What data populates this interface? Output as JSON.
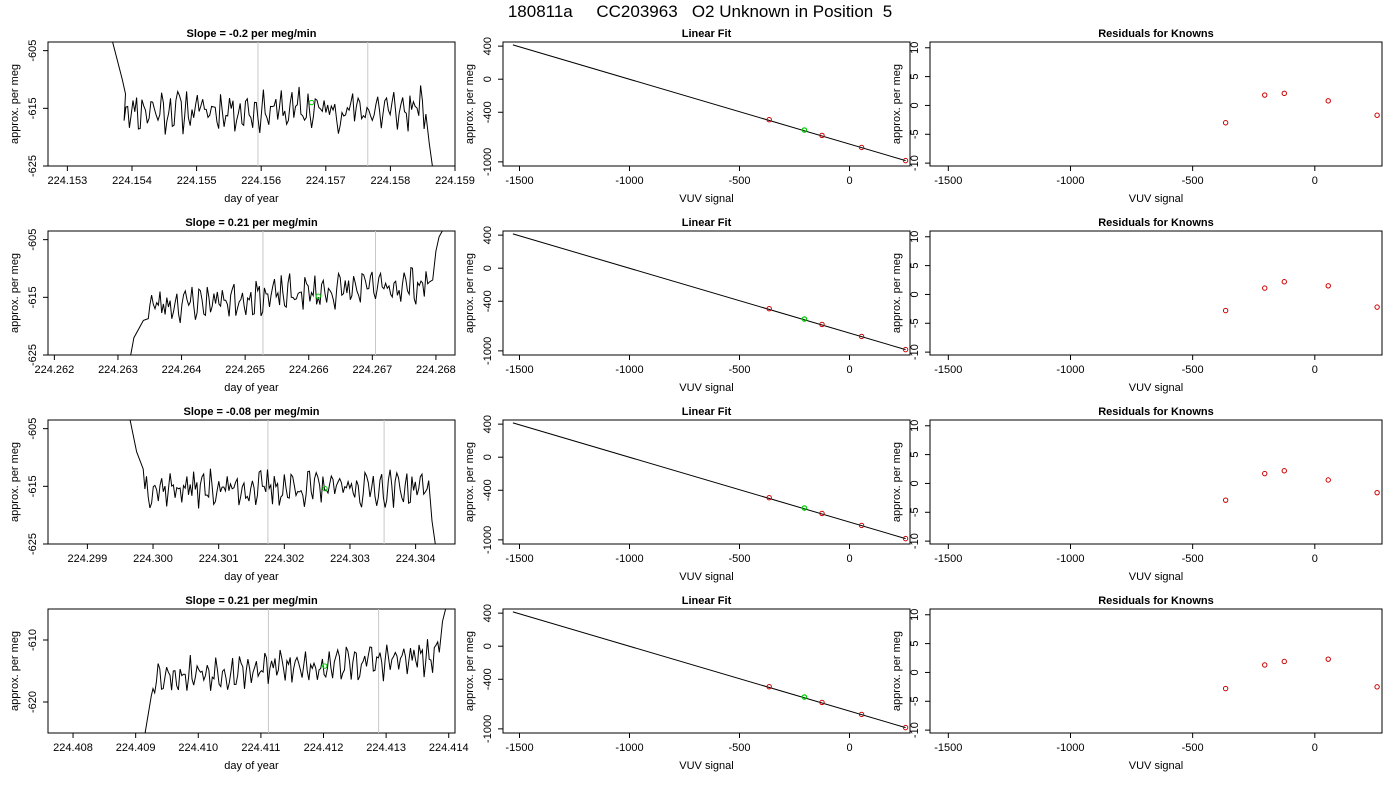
{
  "figure": {
    "title": "180811a     CC203963   O2 Unknown in Position  5"
  },
  "colors": {
    "line": "#000000",
    "marker_known": "#cc0000",
    "marker_unknown": "#00cc00",
    "vline": "#c8c8c8"
  },
  "chart_data": [
    {
      "id": "r1-time",
      "type": "line",
      "title": "Slope =  -0.2  per meg/min",
      "xlabel": "day of year",
      "ylabel": "approx. per meg",
      "xlim": [
        224.1527,
        224.159
      ],
      "ylim": [
        -625,
        -603.5
      ],
      "xticks": [
        224.153,
        224.154,
        224.155,
        224.156,
        224.157,
        224.158,
        224.159
      ],
      "xtick_labels": [
        "224.153",
        "224.154",
        "224.155",
        "224.156",
        "224.157",
        "224.158",
        "224.159"
      ],
      "yticks": [
        -605,
        -615,
        -625
      ],
      "ytick_labels": [
        "-605",
        "-615",
        "-625"
      ],
      "trace_start": 224.15385,
      "trace_end": 224.15855,
      "trace_mean": -615.3,
      "trace_amp": 3.2,
      "seed": 11,
      "head": [
        [
          224.1537,
          -603.5
        ],
        [
          224.15385,
          -610
        ],
        [
          224.1539,
          -612.5
        ]
      ],
      "tail": [
        [
          224.15855,
          -616
        ],
        [
          224.1586,
          -621
        ],
        [
          224.15865,
          -625
        ]
      ],
      "vlines": [
        224.15595,
        224.15765
      ],
      "marker": {
        "x": 224.15678,
        "y": -614.0
      }
    },
    {
      "id": "r1-fit",
      "type": "scatter",
      "title": "Linear Fit",
      "xlabel": "VUV signal",
      "ylabel": "approx. per meg",
      "xlim": [
        -1575,
        275
      ],
      "ylim": [
        -1050,
        450
      ],
      "xticks": [
        -1500,
        -1000,
        -500,
        0
      ],
      "xtick_labels": [
        "-1500",
        "-1000",
        "-500",
        "0"
      ],
      "yticks": [
        400,
        0,
        -400,
        -1000
      ],
      "ytick_labels": [
        "400",
        "0",
        "-400",
        "-1000"
      ],
      "line": [
        [
          -1530,
          415
        ],
        [
          255,
          -985
        ]
      ],
      "known": [
        [
          -365,
          -490
        ],
        [
          -125,
          -680
        ],
        [
          55,
          -825
        ],
        [
          255,
          -985
        ]
      ],
      "unknown": [
        [
          -205,
          -615
        ]
      ]
    },
    {
      "id": "r1-resid",
      "type": "scatter",
      "title": "Residuals for Knowns",
      "xlabel": "VUV signal",
      "ylabel": "approx. per meg",
      "xlim": [
        -1575,
        275
      ],
      "ylim": [
        -10.5,
        11
      ],
      "xticks": [
        -1500,
        -1000,
        -500,
        0
      ],
      "xtick_labels": [
        "-1500",
        "-1000",
        "-500",
        "0"
      ],
      "yticks": [
        10,
        5,
        0,
        -5,
        -10
      ],
      "ytick_labels": [
        "10",
        "5",
        "0",
        "-5",
        "-10"
      ],
      "known": [
        [
          -365,
          -3.0
        ],
        [
          -205,
          1.8
        ],
        [
          -125,
          2.1
        ],
        [
          55,
          0.8
        ],
        [
          255,
          -1.7
        ]
      ]
    },
    {
      "id": "r2-time",
      "type": "line",
      "title": "Slope =  0.21  per meg/min",
      "xlabel": "day of year",
      "ylabel": "approx. per meg",
      "xlim": [
        224.2619,
        224.2683
      ],
      "ylim": [
        -625,
        -603.5
      ],
      "xticks": [
        224.262,
        224.263,
        224.264,
        224.265,
        224.266,
        224.267,
        224.268
      ],
      "xtick_labels": [
        "224.262",
        "224.263",
        "224.264",
        "224.265",
        "224.266",
        "224.267",
        "224.268"
      ],
      "yticks": [
        -605,
        -615,
        -625
      ],
      "ytick_labels": [
        "-605",
        "-615",
        "-625"
      ],
      "trace_start": 224.26345,
      "trace_end": 224.26795,
      "trace_mean": -614.5,
      "trace_amp": 2.6,
      "seed": 23,
      "slope": 4.0,
      "head": [
        [
          224.2632,
          -625
        ],
        [
          224.26325,
          -622
        ],
        [
          224.2634,
          -619
        ]
      ],
      "tail": [
        [
          224.26795,
          -612
        ],
        [
          224.268,
          -607
        ],
        [
          224.26805,
          -604.5
        ],
        [
          224.2681,
          -603.5
        ]
      ],
      "vlines": [
        224.26528,
        224.26705
      ],
      "marker": {
        "x": 224.26615,
        "y": -614.8
      }
    },
    {
      "id": "r2-fit",
      "type": "scatter",
      "title": "Linear Fit",
      "xlabel": "VUV signal",
      "ylabel": "approx. per meg",
      "xlim": [
        -1575,
        275
      ],
      "ylim": [
        -1050,
        450
      ],
      "xticks": [
        -1500,
        -1000,
        -500,
        0
      ],
      "xtick_labels": [
        "-1500",
        "-1000",
        "-500",
        "0"
      ],
      "yticks": [
        400,
        0,
        -400,
        -1000
      ],
      "ytick_labels": [
        "400",
        "0",
        "-400",
        "-1000"
      ],
      "line": [
        [
          -1530,
          415
        ],
        [
          255,
          -985
        ]
      ],
      "known": [
        [
          -365,
          -490
        ],
        [
          -125,
          -680
        ],
        [
          55,
          -825
        ],
        [
          255,
          -985
        ]
      ],
      "unknown": [
        [
          -205,
          -615
        ]
      ]
    },
    {
      "id": "r2-resid",
      "type": "scatter",
      "title": "Residuals for Knowns",
      "xlabel": "VUV signal",
      "ylabel": "approx. per meg",
      "xlim": [
        -1575,
        275
      ],
      "ylim": [
        -10.5,
        11
      ],
      "xticks": [
        -1500,
        -1000,
        -500,
        0
      ],
      "xtick_labels": [
        "-1500",
        "-1000",
        "-500",
        "0"
      ],
      "yticks": [
        10,
        5,
        0,
        -5,
        -10
      ],
      "ytick_labels": [
        "10",
        "5",
        "0",
        "-5",
        "-10"
      ],
      "known": [
        [
          -365,
          -2.8
        ],
        [
          -205,
          1.1
        ],
        [
          -125,
          2.2
        ],
        [
          55,
          1.5
        ],
        [
          255,
          -2.2
        ]
      ]
    },
    {
      "id": "r3-time",
      "type": "line",
      "title": "Slope =  -0.08  per meg/min",
      "xlabel": "day of year",
      "ylabel": "approx. per meg",
      "xlim": [
        224.2984,
        224.3046
      ],
      "ylim": [
        -625,
        -603.5
      ],
      "xticks": [
        224.299,
        224.3,
        224.301,
        224.302,
        224.303,
        224.304
      ],
      "xtick_labels": [
        "224.299",
        "224.300",
        "224.301",
        "224.302",
        "224.303",
        "224.304"
      ],
      "yticks": [
        -605,
        -615,
        -625
      ],
      "ytick_labels": [
        "-605",
        "-615",
        "-625"
      ],
      "trace_start": 224.29985,
      "trace_end": 224.3042,
      "trace_mean": -615.3,
      "trace_amp": 2.6,
      "seed": 37,
      "head": [
        [
          224.29965,
          -603.5
        ],
        [
          224.29975,
          -609
        ],
        [
          224.29985,
          -612
        ]
      ],
      "tail": [
        [
          224.3042,
          -614
        ],
        [
          224.30425,
          -621
        ],
        [
          224.3043,
          -625
        ]
      ],
      "vlines": [
        224.30175,
        224.30352
      ],
      "marker": {
        "x": 224.30262,
        "y": -615.4
      }
    },
    {
      "id": "r3-fit",
      "type": "scatter",
      "title": "Linear Fit",
      "xlabel": "VUV signal",
      "ylabel": "approx. per meg",
      "xlim": [
        -1575,
        275
      ],
      "ylim": [
        -1050,
        450
      ],
      "xticks": [
        -1500,
        -1000,
        -500,
        0
      ],
      "xtick_labels": [
        "-1500",
        "-1000",
        "-500",
        "0"
      ],
      "yticks": [
        400,
        0,
        -400,
        -1000
      ],
      "ytick_labels": [
        "400",
        "0",
        "-400",
        "-1000"
      ],
      "line": [
        [
          -1530,
          415
        ],
        [
          255,
          -985
        ]
      ],
      "known": [
        [
          -365,
          -490
        ],
        [
          -125,
          -680
        ],
        [
          55,
          -825
        ],
        [
          255,
          -985
        ]
      ],
      "unknown": [
        [
          -205,
          -615
        ]
      ]
    },
    {
      "id": "r3-resid",
      "type": "scatter",
      "title": "Residuals for Knowns",
      "xlabel": "VUV signal",
      "ylabel": "approx. per meg",
      "xlim": [
        -1575,
        275
      ],
      "ylim": [
        -10.5,
        11
      ],
      "xticks": [
        -1500,
        -1000,
        -500,
        0
      ],
      "xtick_labels": [
        "-1500",
        "-1000",
        "-500",
        "0"
      ],
      "yticks": [
        10,
        5,
        0,
        -5,
        -10
      ],
      "ytick_labels": [
        "10",
        "5",
        "0",
        "-5",
        "-10"
      ],
      "known": [
        [
          -365,
          -2.9
        ],
        [
          -205,
          1.7
        ],
        [
          -125,
          2.2
        ],
        [
          55,
          0.6
        ],
        [
          255,
          -1.6
        ]
      ]
    },
    {
      "id": "r4-time",
      "type": "line",
      "title": "Slope =  0.21  per meg/min",
      "xlabel": "day of year",
      "ylabel": "approx. per meg",
      "xlim": [
        224.4076,
        224.4141
      ],
      "ylim": [
        -625,
        -605
      ],
      "xticks": [
        224.408,
        224.409,
        224.41,
        224.411,
        224.412,
        224.413,
        224.414
      ],
      "xtick_labels": [
        "224.408",
        "224.409",
        "224.410",
        "224.411",
        "224.412",
        "224.413",
        "224.414"
      ],
      "yticks": [
        -610,
        -620
      ],
      "ytick_labels": [
        "-610",
        "-620"
      ],
      "trace_start": 224.40925,
      "trace_end": 224.41385,
      "trace_mean": -614.3,
      "trace_amp": 2.4,
      "seed": 53,
      "slope": 3.0,
      "head": [
        [
          224.40915,
          -625
        ],
        [
          224.40925,
          -619
        ]
      ],
      "tail": [
        [
          224.41385,
          -612
        ],
        [
          224.4139,
          -607
        ],
        [
          224.41395,
          -605
        ]
      ],
      "vlines": [
        224.41112,
        224.41288
      ],
      "marker": {
        "x": 224.41202,
        "y": -614.2
      }
    },
    {
      "id": "r4-fit",
      "type": "scatter",
      "title": "Linear Fit",
      "xlabel": "VUV signal",
      "ylabel": "approx. per meg",
      "xlim": [
        -1575,
        275
      ],
      "ylim": [
        -1050,
        450
      ],
      "xticks": [
        -1500,
        -1000,
        -500,
        0
      ],
      "xtick_labels": [
        "-1500",
        "-1000",
        "-500",
        "0"
      ],
      "yticks": [
        400,
        0,
        -400,
        -1000
      ],
      "ytick_labels": [
        "400",
        "0",
        "-400",
        "-1000"
      ],
      "line": [
        [
          -1530,
          415
        ],
        [
          255,
          -985
        ]
      ],
      "known": [
        [
          -365,
          -490
        ],
        [
          -125,
          -680
        ],
        [
          55,
          -825
        ],
        [
          255,
          -985
        ]
      ],
      "unknown": [
        [
          -205,
          -615
        ]
      ]
    },
    {
      "id": "r4-resid",
      "type": "scatter",
      "title": "Residuals for Knowns",
      "xlabel": "VUV signal",
      "ylabel": "approx. per meg",
      "xlim": [
        -1575,
        275
      ],
      "ylim": [
        -10.5,
        11
      ],
      "xticks": [
        -1500,
        -1000,
        -500,
        0
      ],
      "xtick_labels": [
        "-1500",
        "-1000",
        "-500",
        "0"
      ],
      "yticks": [
        10,
        5,
        0,
        -5,
        -10
      ],
      "ytick_labels": [
        "10",
        "5",
        "0",
        "-5",
        "-10"
      ],
      "known": [
        [
          -365,
          -2.8
        ],
        [
          -205,
          1.3
        ],
        [
          -125,
          1.9
        ],
        [
          55,
          2.3
        ],
        [
          255,
          -2.5
        ]
      ]
    }
  ]
}
